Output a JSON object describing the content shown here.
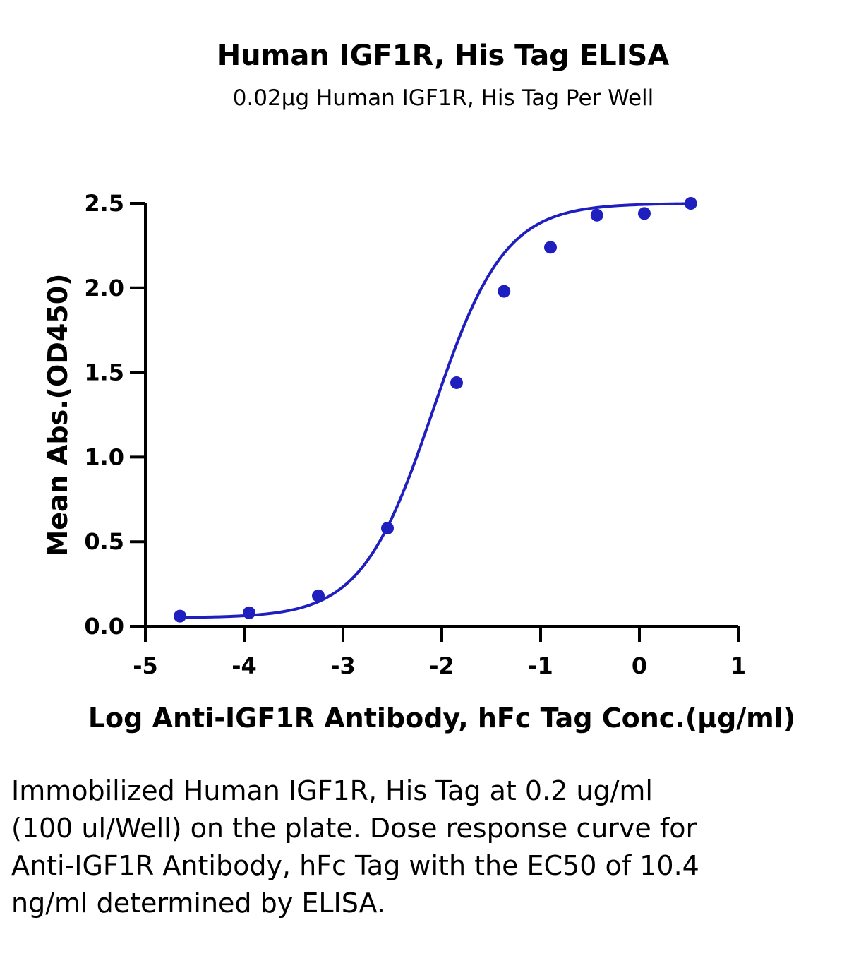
{
  "chart_data": {
    "type": "scatter",
    "title": "Human IGF1R, His Tag ELISA",
    "subtitle": "0.02μg Human IGF1R, His Tag Per Well",
    "xlabel": "Log Anti-IGF1R Antibody, hFc Tag Conc.(μg/ml)",
    "ylabel": "Mean Abs.(OD450)",
    "xlim": [
      -5,
      1
    ],
    "ylim": [
      0,
      2.5
    ],
    "x_ticks": [
      "-5",
      "-4",
      "-3",
      "-2",
      "-1",
      "0",
      "1"
    ],
    "y_ticks": [
      "0.0",
      "0.5",
      "1.0",
      "1.5",
      "2.0",
      "2.5"
    ],
    "grid": false,
    "series": [
      {
        "color": "#1f1fbf",
        "fit": "sigmoidal four-parameter logistic curve",
        "points": [
          {
            "x": -4.65,
            "y": 0.06
          },
          {
            "x": -3.95,
            "y": 0.08
          },
          {
            "x": -3.25,
            "y": 0.18
          },
          {
            "x": -2.55,
            "y": 0.58
          },
          {
            "x": -1.85,
            "y": 1.44
          },
          {
            "x": -1.37,
            "y": 1.98
          },
          {
            "x": -0.9,
            "y": 2.24
          },
          {
            "x": -0.43,
            "y": 2.43
          },
          {
            "x": 0.05,
            "y": 2.44
          },
          {
            "x": 0.52,
            "y": 2.5
          }
        ]
      }
    ]
  },
  "caption": "Immobilized Human IGF1R, His Tag at 0.2 ug/ml (100 ul/Well) on the plate. Dose response curve for Anti-IGF1R Antibody, hFc Tag with the EC50 of 10.4 ng/ml determined by ELISA."
}
